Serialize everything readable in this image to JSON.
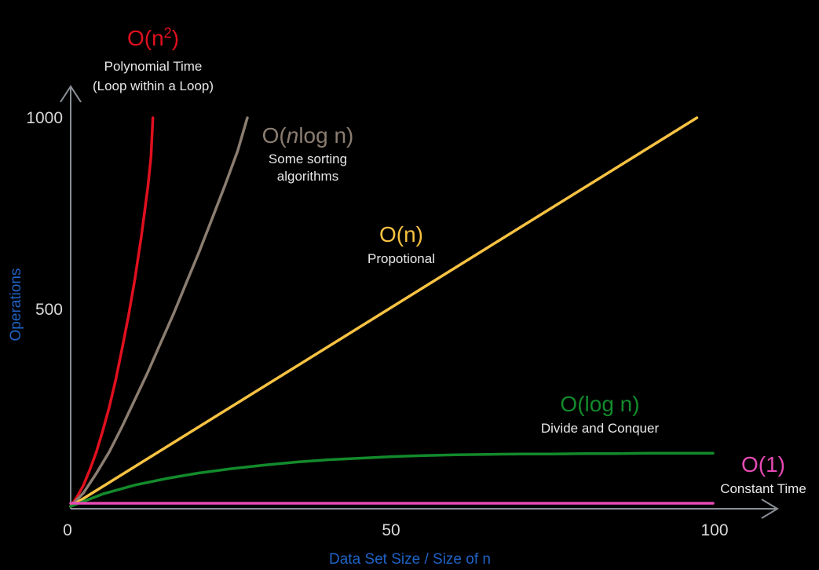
{
  "chart_data": {
    "type": "line",
    "xlabel": "Data Set Size / Size of n",
    "ylabel": "Operations",
    "xlim": [
      0,
      100
    ],
    "ylim": [
      0,
      1000
    ],
    "x_ticks": [
      "0",
      "50",
      "100"
    ],
    "y_ticks": [
      "500",
      "1000"
    ],
    "grid": false,
    "colors": {
      "axis": "#8a8f96",
      "axis_title": "#1f63c6",
      "n_squared": "#e0101e",
      "n_log_n": "#8b7d70",
      "n": "#f7c242",
      "log_n": "#138a2b",
      "constant": "#e64bb4"
    },
    "series": [
      {
        "key": "n_squared",
        "name_prefix": "O(n",
        "name_sup": "2",
        "name_suffix": ")",
        "desc1": "Polynomial Time",
        "desc2": "(Loop within a Loop)",
        "x": [
          0,
          1,
          2,
          3,
          4,
          5,
          6,
          7,
          8,
          9,
          10,
          11,
          12,
          12.5,
          12.8
        ],
        "y": [
          0,
          25,
          55,
          95,
          140,
          195,
          255,
          325,
          405,
          490,
          585,
          695,
          820,
          900,
          1000
        ]
      },
      {
        "key": "n_log_n",
        "name_prefix": "O(",
        "name_italic": "n",
        "name_suffix": "log n)",
        "desc1": "Some sorting",
        "desc2": "algorithms",
        "x": [
          0,
          2,
          4,
          6,
          8,
          10,
          12,
          14,
          16,
          18,
          20,
          22,
          24,
          26,
          27.5
        ],
        "y": [
          0,
          35,
          85,
          140,
          205,
          275,
          345,
          420,
          495,
          575,
          655,
          740,
          825,
          915,
          1000
        ]
      },
      {
        "key": "n",
        "name": "O(n)",
        "desc1": "Propotional",
        "x": [
          0,
          97.5
        ],
        "y": [
          0,
          1000
        ]
      },
      {
        "key": "log_n",
        "name": "O(log n)",
        "desc1": "Divide and Conquer",
        "x": [
          0,
          5,
          10,
          15,
          20,
          25,
          30,
          35,
          40,
          45,
          50,
          55,
          60,
          65,
          70,
          75,
          80,
          85,
          90,
          95,
          100
        ],
        "y": [
          0,
          32,
          55,
          72,
          86,
          97,
          106,
          114,
          120,
          124,
          128,
          131,
          133,
          134,
          135,
          135,
          136,
          136,
          137,
          137,
          137
        ]
      },
      {
        "key": "constant",
        "name": "O(1)",
        "desc1": "Constant Time",
        "x": [
          0,
          100
        ],
        "y": [
          8,
          8
        ]
      }
    ]
  }
}
